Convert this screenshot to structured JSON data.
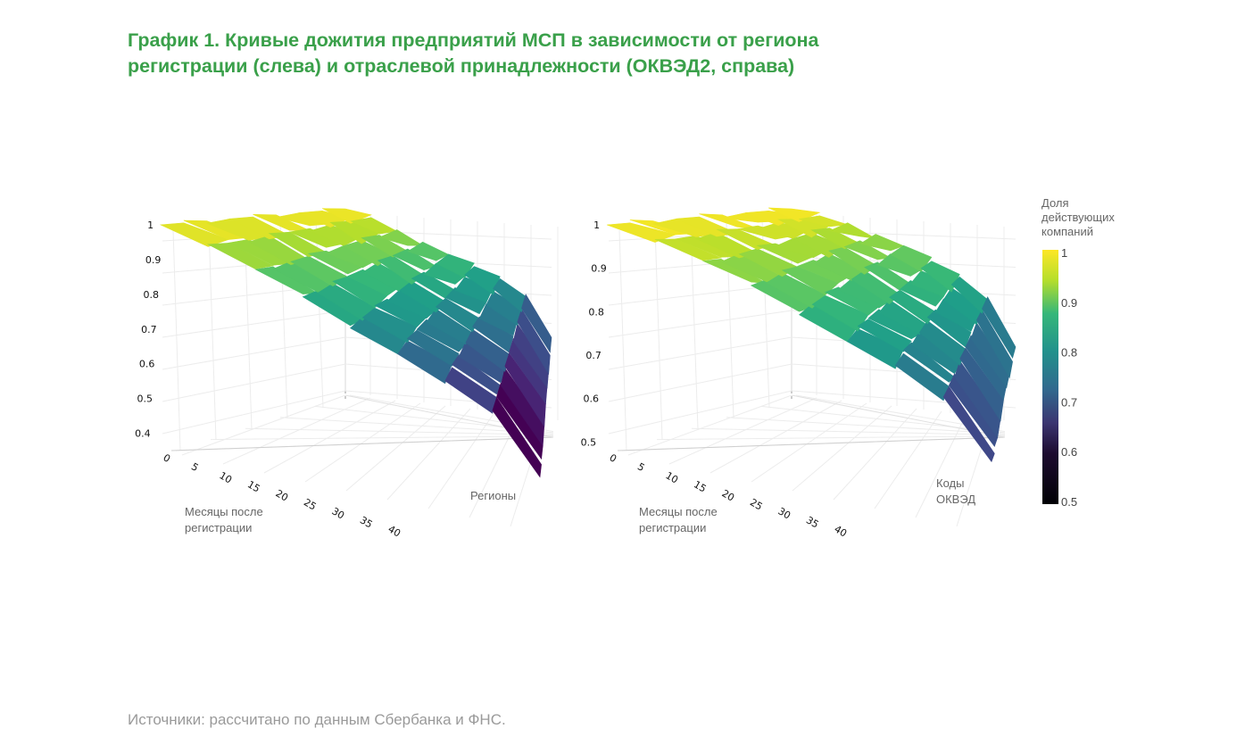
{
  "title": {
    "line1": "График 1. Кривые дожития предприятий МСП в зависимости от региона",
    "line2": "регистрации (слева) и отраслевой принадлежности (ОКВЭД2, справа)"
  },
  "source": "Источники: рассчитано по данным Сбербанка и ФНС.",
  "colors": {
    "title": "#3aa04a",
    "surface_low": "#440154",
    "surface_mid": "#21918c",
    "surface_high": "#fde725"
  },
  "chart_data": [
    {
      "type": "surface",
      "xlabel": [
        "Месяцы после",
        "регистрации"
      ],
      "ylabel": [
        "Регионы"
      ],
      "zlim": [
        0.35,
        1
      ],
      "z_ticks": [
        "0.4",
        "0.5",
        "0.6",
        "0.7",
        "0.8",
        "0.9",
        "1"
      ],
      "x_ticks": [
        "0",
        "5",
        "10",
        "15",
        "20",
        "25",
        "30",
        "35",
        "40"
      ],
      "series": [
        {
          "x": [
            0,
            5,
            10,
            15,
            20,
            25,
            30,
            35,
            40
          ],
          "z_near": [
            1.0,
            0.95,
            0.89,
            0.83,
            0.76,
            0.7,
            0.63,
            0.55,
            0.37
          ]
        },
        {
          "x": [
            0,
            5,
            10,
            15,
            20,
            25,
            30,
            35,
            40
          ],
          "z_far": [
            1.0,
            0.97,
            0.93,
            0.89,
            0.85,
            0.81,
            0.77,
            0.72,
            0.6
          ]
        }
      ]
    },
    {
      "type": "surface",
      "xlabel": [
        "Месяцы после",
        "регистрации"
      ],
      "ylabel": [
        "Коды",
        "ОКВЭД"
      ],
      "zlim": [
        0.48,
        1
      ],
      "z_ticks": [
        "0.5",
        "0.6",
        "0.7",
        "0.8",
        "0.9",
        "1"
      ],
      "x_ticks": [
        "0",
        "5",
        "10",
        "15",
        "20",
        "25",
        "30",
        "35",
        "40"
      ],
      "series": [
        {
          "x": [
            0,
            5,
            10,
            15,
            20,
            25,
            30,
            35,
            40
          ],
          "z_near": [
            1.0,
            0.97,
            0.93,
            0.89,
            0.84,
            0.79,
            0.74,
            0.67,
            0.53
          ]
        },
        {
          "x": [
            0,
            5,
            10,
            15,
            20,
            25,
            30,
            35,
            40
          ],
          "z_far": [
            1.0,
            0.98,
            0.96,
            0.93,
            0.9,
            0.86,
            0.82,
            0.77,
            0.66
          ]
        }
      ]
    }
  ],
  "colorbar": {
    "title": [
      "Доля",
      "действующих",
      "компаний"
    ],
    "range": [
      0.5,
      1
    ],
    "ticks": [
      "1",
      "0.9",
      "0.8",
      "0.7",
      "0.6",
      "0.5"
    ]
  }
}
